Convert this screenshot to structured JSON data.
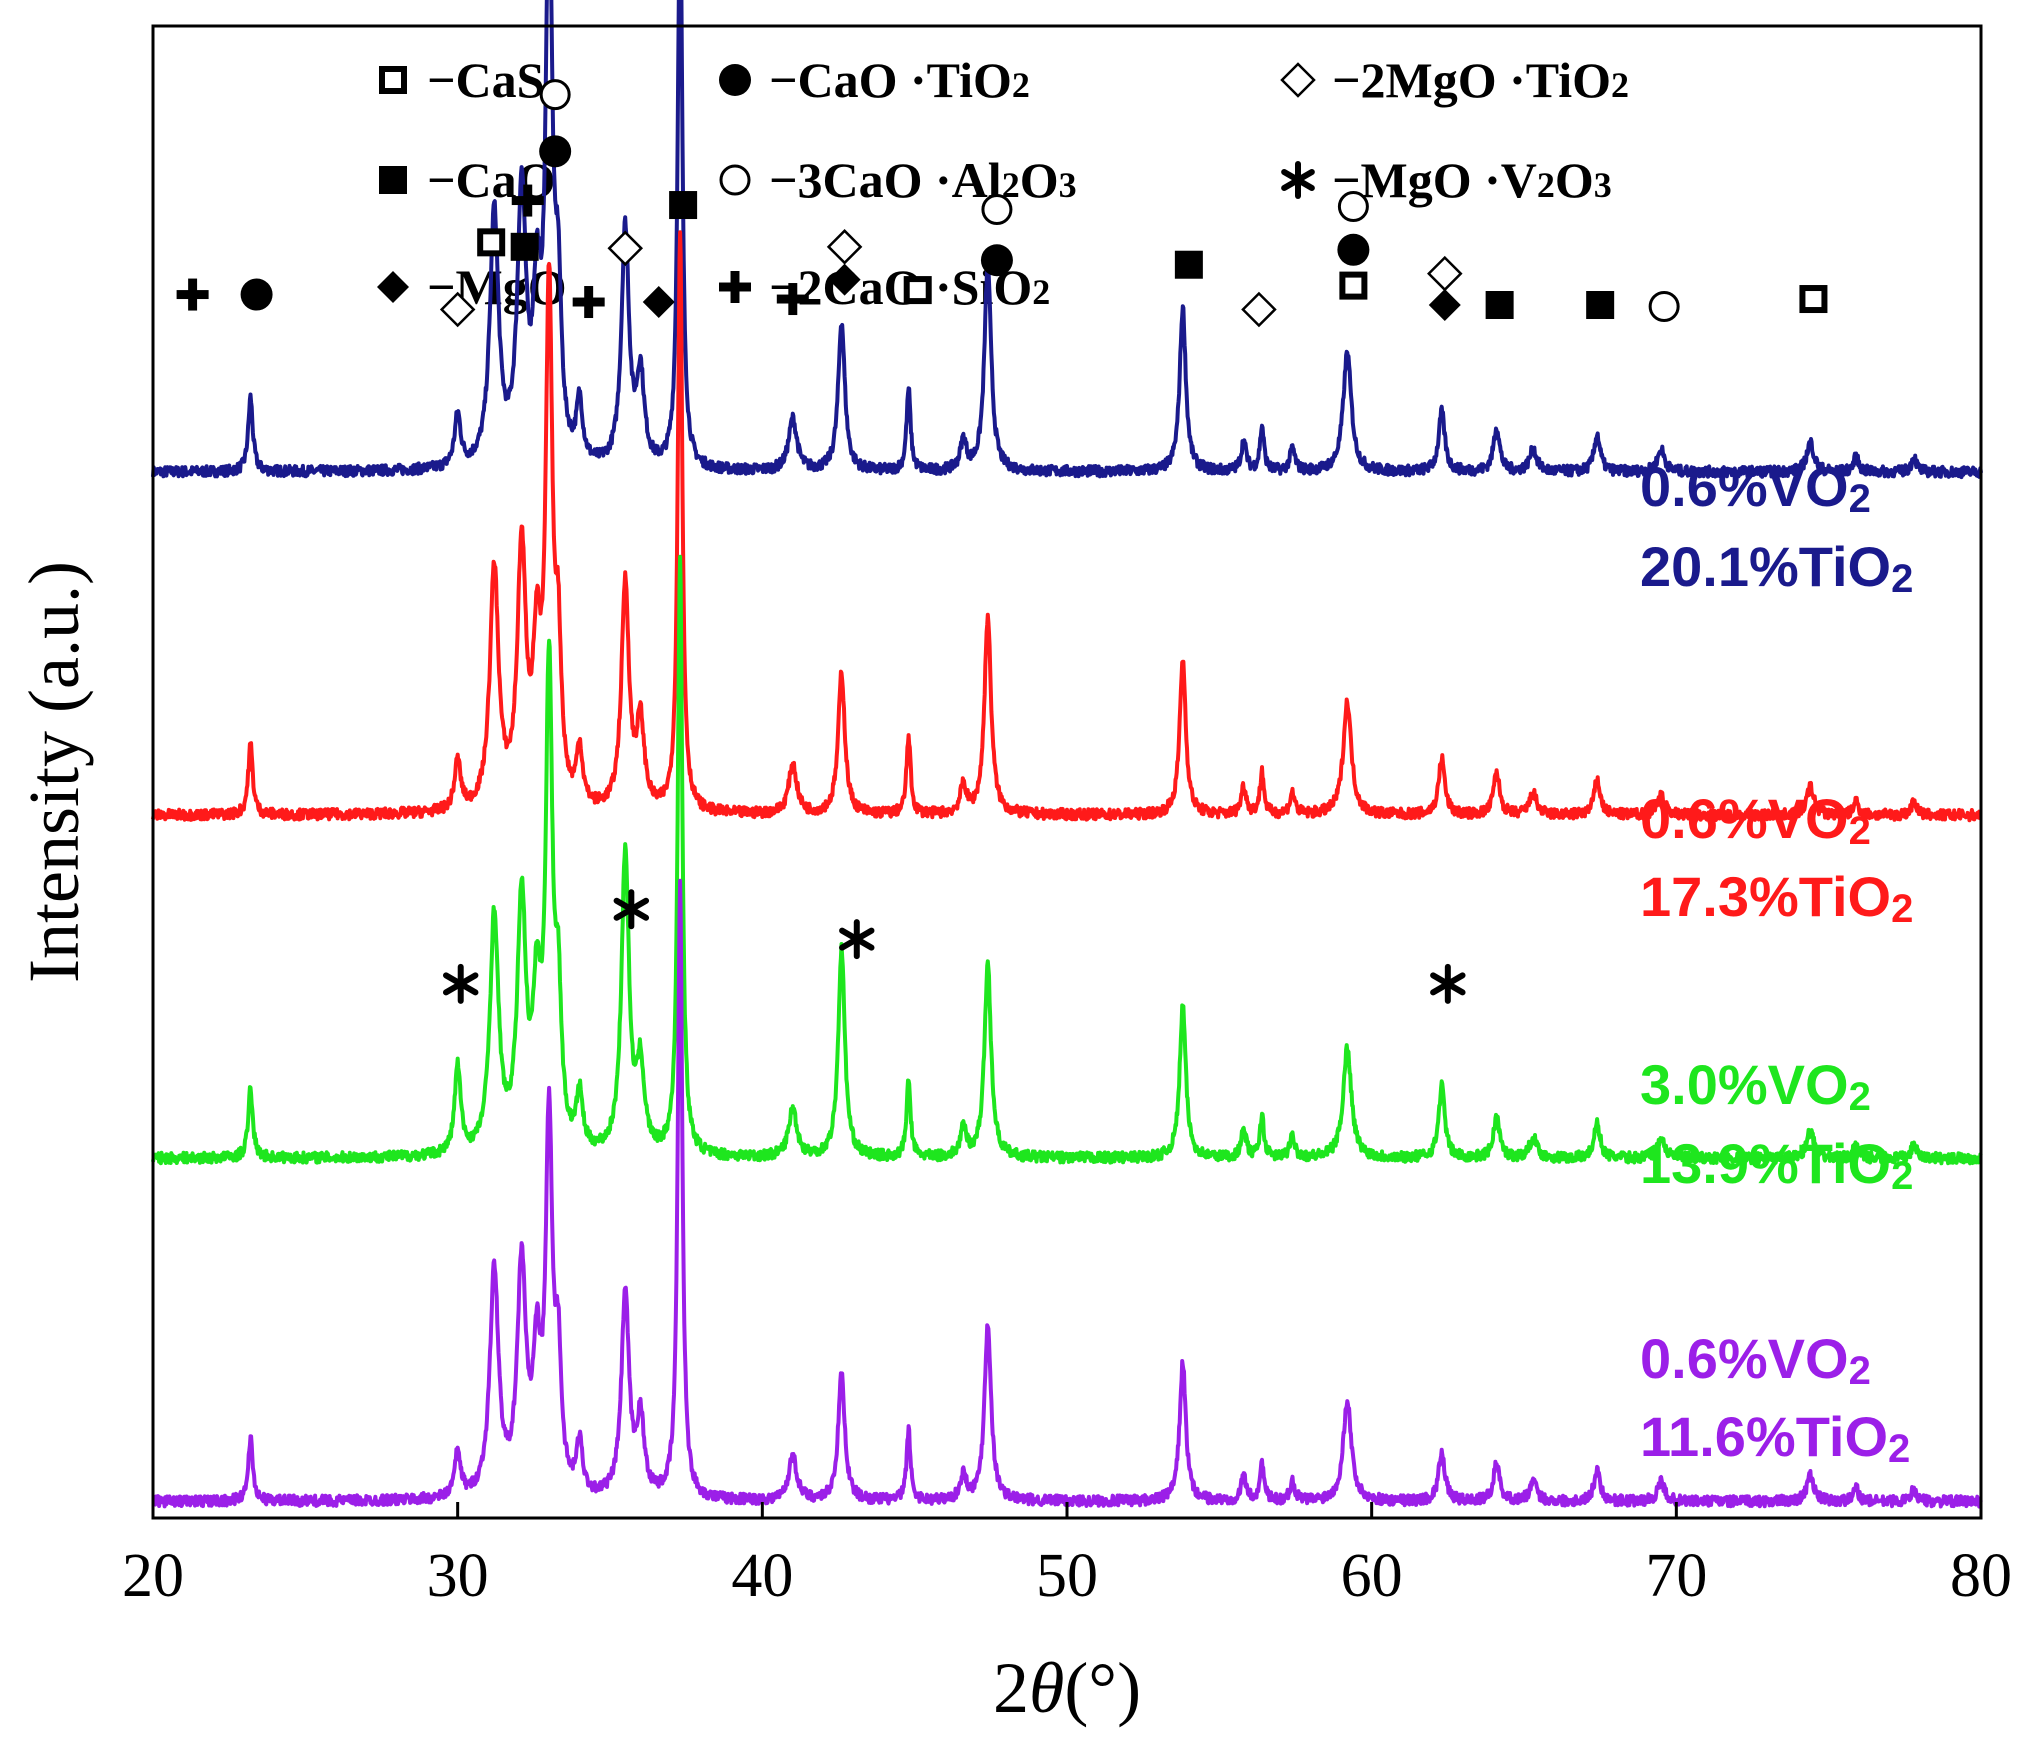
{
  "chart_data": {
    "type": "line",
    "title": "",
    "xlabel_prefix": "2",
    "xlabel_symbol": "θ",
    "xlabel_unit": "(°)",
    "ylabel": "Intensity (a.u.)",
    "xlim": [
      20,
      80
    ],
    "ylim": [
      0,
      1
    ],
    "xticks": [
      "20",
      "30",
      "40",
      "50",
      "60",
      "70",
      "80"
    ],
    "grid": false,
    "legend": {
      "placement": "top",
      "dash": "−",
      "items": [
        {
          "key": "cas",
          "marker": "square-open",
          "text": "CaS"
        },
        {
          "key": "caotio2",
          "marker": "circle-filled",
          "text": "CaO ·TiO",
          "sub": "2"
        },
        {
          "key": "mg2tio2",
          "marker": "diamond-open",
          "text": "2MgO ·TiO",
          "sub": "2"
        },
        {
          "key": "cao",
          "marker": "square-filled",
          "text": "CaO"
        },
        {
          "key": "c3a",
          "marker": "circle-open",
          "text": "3CaO ·Al",
          "sub": "2",
          "text2": "O",
          "sub2": "3"
        },
        {
          "key": "mgv",
          "marker": "asterisk",
          "text": "MgO ·V",
          "sub": "2",
          "text2": "O",
          "sub2": "3"
        },
        {
          "key": "mgo",
          "marker": "diamond-filled",
          "text": "MgO"
        },
        {
          "key": "c2s",
          "marker": "cross",
          "text": "2CaO ·SiO",
          "sub": "2"
        }
      ]
    },
    "peaks": [
      {
        "x": 23.2,
        "h": 0.05,
        "w": 0.09
      },
      {
        "x": 30.0,
        "h": 0.035,
        "w": 0.12
      },
      {
        "x": 31.2,
        "h": 0.17,
        "w": 0.17
      },
      {
        "x": 32.1,
        "h": 0.18,
        "w": 0.17
      },
      {
        "x": 32.6,
        "h": 0.1,
        "w": 0.15
      },
      {
        "x": 33.0,
        "h": 0.34,
        "w": 0.13
      },
      {
        "x": 33.3,
        "h": 0.1,
        "w": 0.12
      },
      {
        "x": 34.0,
        "h": 0.04,
        "w": 0.12
      },
      {
        "x": 35.5,
        "h": 0.16,
        "w": 0.15
      },
      {
        "x": 36.0,
        "h": 0.06,
        "w": 0.15
      },
      {
        "x": 37.3,
        "h": 0.41,
        "w": 0.09
      },
      {
        "x": 41.0,
        "h": 0.035,
        "w": 0.16
      },
      {
        "x": 42.6,
        "h": 0.1,
        "w": 0.13
      },
      {
        "x": 44.8,
        "h": 0.055,
        "w": 0.08
      },
      {
        "x": 46.6,
        "h": 0.02,
        "w": 0.12
      },
      {
        "x": 47.4,
        "h": 0.14,
        "w": 0.13
      },
      {
        "x": 53.8,
        "h": 0.11,
        "w": 0.12
      },
      {
        "x": 55.8,
        "h": 0.02,
        "w": 0.1
      },
      {
        "x": 56.4,
        "h": 0.03,
        "w": 0.08
      },
      {
        "x": 57.4,
        "h": 0.015,
        "w": 0.1
      },
      {
        "x": 59.2,
        "h": 0.08,
        "w": 0.16
      },
      {
        "x": 62.3,
        "h": 0.04,
        "w": 0.12
      },
      {
        "x": 64.1,
        "h": 0.03,
        "w": 0.12
      },
      {
        "x": 65.3,
        "h": 0.015,
        "w": 0.14
      },
      {
        "x": 67.4,
        "h": 0.025,
        "w": 0.12
      },
      {
        "x": 69.5,
        "h": 0.015,
        "w": 0.14
      },
      {
        "x": 74.4,
        "h": 0.02,
        "w": 0.14
      },
      {
        "x": 75.9,
        "h": 0.01,
        "w": 0.1
      },
      {
        "x": 77.8,
        "h": 0.01,
        "w": 0.1
      }
    ],
    "series": [
      {
        "name": "0.6%VO2 / 20.1%TiO2",
        "line1": "0.6%VO",
        "line1_sub": "2",
        "line2": "20.1%TiO",
        "line2_sub": "2",
        "color": "#1a1a8c",
        "baseline": 0.7,
        "scale": 1.0,
        "mods": {
          "33.0": 1.08,
          "37.3": 0.95
        }
      },
      {
        "name": "0.6%VO2 / 17.3%TiO2",
        "line1": "0.6%VO",
        "line1_sub": "2",
        "line2": "17.3%TiO",
        "line2_sub": "2",
        "color": "#ff1a1a",
        "baseline": 0.47,
        "scale": 0.95,
        "mods": {
          "33.0": 1.05,
          "37.3": 1.0
        }
      },
      {
        "name": "3.0%VO2 / 13.9%TiO2",
        "line1": "3.0%VO",
        "line1_sub": "2",
        "line2": "13.9%TiO",
        "line2_sub": "2",
        "color": "#1ee61e",
        "baseline": 0.24,
        "scale": 0.93,
        "mods": {
          "30.0": 1.8,
          "35.5": 1.35,
          "42.6": 1.5,
          "62.3": 1.3,
          "37.3": 1.05
        }
      },
      {
        "name": "0.6%VO2 / 11.6%TiO2",
        "line1": "0.6%VO",
        "line1_sub": "2",
        "line2": "11.6%TiO",
        "line2_sub": "2",
        "color": "#9b1fe8",
        "baseline": 0.01,
        "scale": 0.85,
        "mods": {
          "37.3": 1.18,
          "33.0": 0.85,
          "31.2": 1.05
        }
      }
    ],
    "phase_markers": [
      {
        "x": 21.3,
        "y": 0.82,
        "marker": "cross"
      },
      {
        "x": 23.4,
        "y": 0.82,
        "marker": "circle-filled"
      },
      {
        "x": 30.0,
        "y": 0.81,
        "marker": "diamond-open"
      },
      {
        "x": 31.1,
        "y": 0.855,
        "marker": "square-open"
      },
      {
        "x": 32.2,
        "y": 0.852,
        "marker": "square-filled"
      },
      {
        "x": 32.3,
        "y": 0.883,
        "marker": "cross"
      },
      {
        "x": 33.2,
        "y": 0.916,
        "marker": "circle-filled"
      },
      {
        "x": 33.2,
        "y": 0.954,
        "marker": "circle-open"
      },
      {
        "x": 34.3,
        "y": 0.815,
        "marker": "cross"
      },
      {
        "x": 35.5,
        "y": 0.851,
        "marker": "diamond-open"
      },
      {
        "x": 36.6,
        "y": 0.815,
        "marker": "diamond-filled"
      },
      {
        "x": 37.4,
        "y": 0.88,
        "marker": "square-filled"
      },
      {
        "x": 41.0,
        "y": 0.817,
        "marker": "cross"
      },
      {
        "x": 42.7,
        "y": 0.852,
        "marker": "diamond-open"
      },
      {
        "x": 42.7,
        "y": 0.83,
        "marker": "diamond-filled"
      },
      {
        "x": 45.1,
        "y": 0.823,
        "marker": "square-open"
      },
      {
        "x": 47.7,
        "y": 0.877,
        "marker": "circle-open"
      },
      {
        "x": 47.7,
        "y": 0.843,
        "marker": "circle-filled"
      },
      {
        "x": 54.0,
        "y": 0.84,
        "marker": "square-filled"
      },
      {
        "x": 56.3,
        "y": 0.81,
        "marker": "diamond-open"
      },
      {
        "x": 59.4,
        "y": 0.879,
        "marker": "circle-open"
      },
      {
        "x": 59.4,
        "y": 0.85,
        "marker": "circle-filled"
      },
      {
        "x": 59.4,
        "y": 0.826,
        "marker": "square-open"
      },
      {
        "x": 62.4,
        "y": 0.834,
        "marker": "diamond-open"
      },
      {
        "x": 62.4,
        "y": 0.813,
        "marker": "diamond-filled"
      },
      {
        "x": 64.2,
        "y": 0.813,
        "marker": "square-filled"
      },
      {
        "x": 67.5,
        "y": 0.813,
        "marker": "square-filled"
      },
      {
        "x": 69.6,
        "y": 0.812,
        "marker": "circle-open"
      },
      {
        "x": 74.5,
        "y": 0.817,
        "marker": "square-open"
      },
      {
        "x": 30.1,
        "y": 0.358,
        "marker": "asterisk"
      },
      {
        "x": 35.7,
        "y": 0.408,
        "marker": "asterisk"
      },
      {
        "x": 43.1,
        "y": 0.388,
        "marker": "asterisk"
      },
      {
        "x": 62.5,
        "y": 0.358,
        "marker": "asterisk"
      }
    ]
  }
}
